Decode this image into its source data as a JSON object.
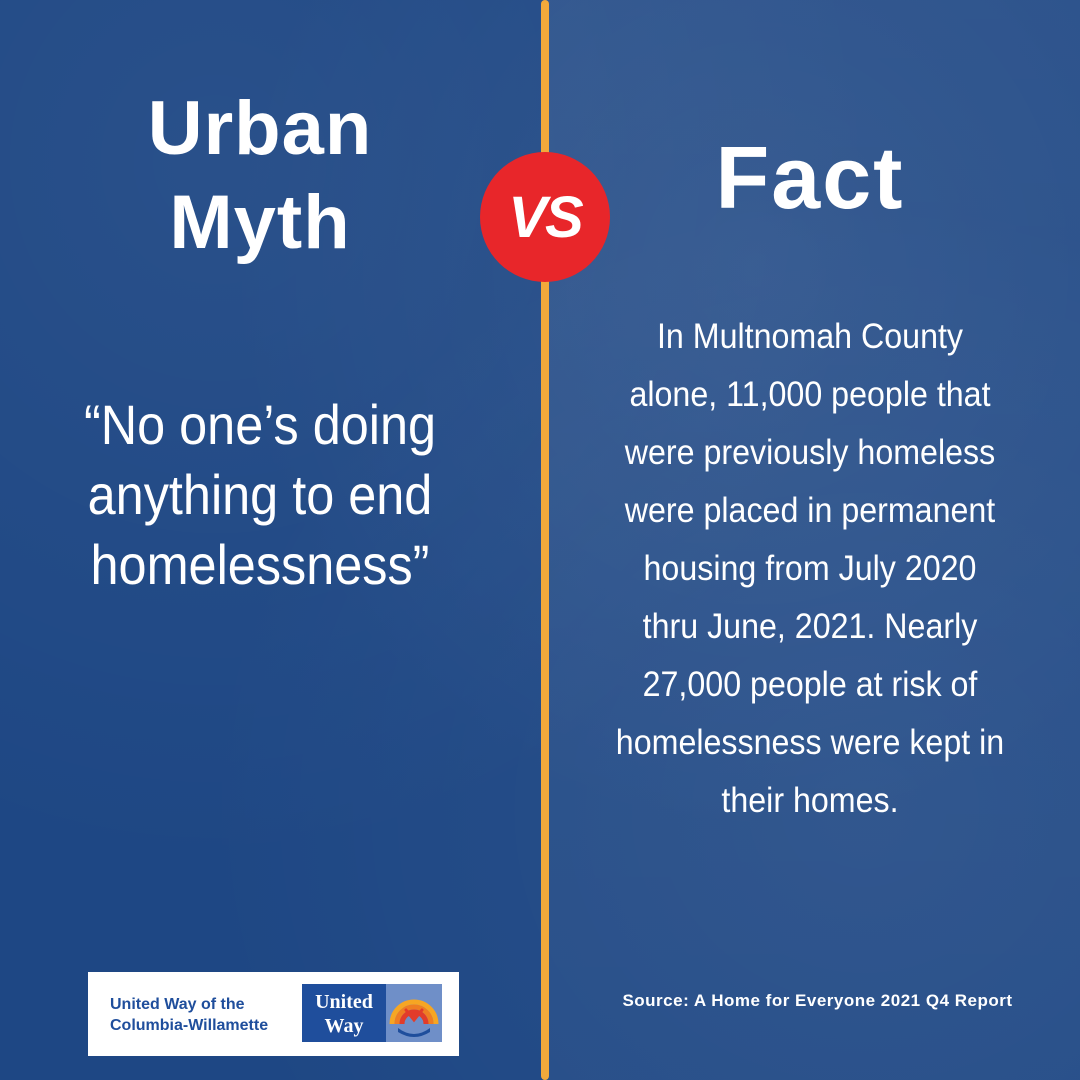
{
  "myth": {
    "heading_line1": "Urban",
    "heading_line2": "Myth",
    "quote": "“No one’s doing anything to end homelessness”"
  },
  "vs_label": "VS",
  "fact": {
    "heading": "Fact",
    "body": "In Multnomah County alone, 11,000 people that were previously homeless were placed in permanent housing from July 2020 thru June, 2021. Nearly 27,000 people at risk of homelessness were kept in their homes.",
    "source": "Source: A Home for Everyone 2021 Q4 Report"
  },
  "logo": {
    "org_line1": "United Way of the",
    "org_line2": "Columbia-Willamette",
    "mark_line1": "United",
    "mark_line2": "Way"
  },
  "colors": {
    "background": "#1e4784",
    "divider": "#f2a93b",
    "vs_badge": "#e8262a",
    "logo_blue": "#1f4e9c"
  }
}
